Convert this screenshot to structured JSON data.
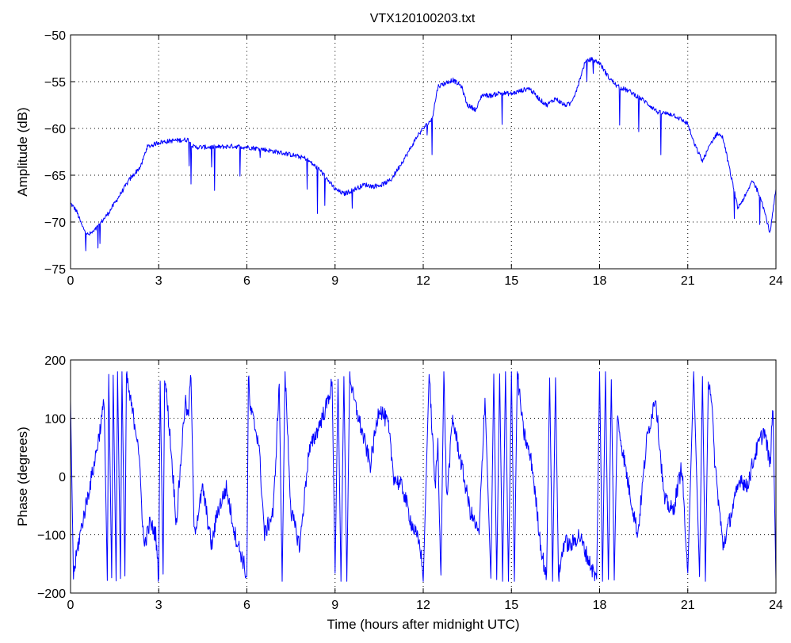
{
  "figure": {
    "title": "VTX120100203.txt"
  },
  "chart_data": [
    {
      "type": "line",
      "title": "VTX120100203.txt",
      "xlabel": "",
      "ylabel": "Amplitude (dB)",
      "xlim": [
        0,
        24
      ],
      "ylim": [
        -75,
        -50
      ],
      "xticks": [
        "0",
        "3",
        "6",
        "9",
        "12",
        "15",
        "18",
        "21",
        "24"
      ],
      "yticks": [
        "−75",
        "−70",
        "−65",
        "−60",
        "−55",
        "−50"
      ],
      "grid": true,
      "line_color": "#0000ff",
      "series": [
        {
          "x": [
            0,
            0.2,
            0.4,
            0.6,
            0.8,
            1.0,
            1.3,
            1.6,
            2.0,
            2.4,
            2.6,
            3.0,
            3.5,
            4.0,
            4.2,
            4.6,
            5.0,
            5.5,
            6.0,
            6.5,
            7.0,
            7.5,
            8.0,
            8.5,
            9.0,
            9.3,
            9.6,
            10.0,
            10.3,
            10.6,
            10.9,
            11.2,
            11.5,
            11.8,
            12.0,
            12.3,
            12.5,
            12.8,
            13.0,
            13.3,
            13.5,
            13.8,
            14.0,
            14.3,
            14.6,
            15.0,
            15.3,
            15.6,
            16.0,
            16.2,
            16.5,
            16.8,
            17.0,
            17.2,
            17.5,
            17.7,
            18.0,
            18.3,
            18.6,
            19.0,
            19.5,
            20.0,
            20.5,
            21.0,
            21.2,
            21.5,
            21.8,
            22.0,
            22.2,
            22.4,
            22.7,
            23.0,
            23.2,
            23.5,
            23.8,
            24.0
          ],
          "y": [
            -68,
            -68.8,
            -70.5,
            -71.4,
            -71,
            -70.2,
            -69,
            -67.5,
            -65.5,
            -64,
            -62,
            -61.5,
            -61.3,
            -61.2,
            -62,
            -62,
            -62,
            -61.9,
            -62,
            -62.2,
            -62.5,
            -62.8,
            -63.2,
            -64.5,
            -66.5,
            -67,
            -66.6,
            -66,
            -66.2,
            -66,
            -65.5,
            -64,
            -62.5,
            -60.8,
            -60,
            -59,
            -55.5,
            -55.1,
            -54.8,
            -55.5,
            -57.5,
            -58,
            -56.4,
            -56.5,
            -56.2,
            -56.3,
            -56,
            -55.7,
            -57,
            -57.5,
            -56.8,
            -57.5,
            -57.4,
            -56,
            -53,
            -52.6,
            -53,
            -54.5,
            -55.5,
            -56,
            -57,
            -58.3,
            -58.5,
            -59.5,
            -61.5,
            -63.5,
            -61.5,
            -60.5,
            -61,
            -64,
            -68.5,
            -67,
            -65.5,
            -67.5,
            -71.2,
            -66.5
          ]
        }
      ]
    },
    {
      "type": "line",
      "title": "",
      "xlabel": "Time (hours after midnight UTC)",
      "ylabel": "Phase (degrees)",
      "xlim": [
        0,
        24
      ],
      "ylim": [
        -200,
        200
      ],
      "xticks": [
        "0",
        "3",
        "6",
        "9",
        "12",
        "15",
        "18",
        "21",
        "24"
      ],
      "yticks": [
        "−200",
        "−100",
        "0",
        "100",
        "200"
      ],
      "grid": true,
      "line_color": "#0000ff",
      "series": [
        {
          "x": [
            0,
            0.1,
            0.25,
            0.4,
            0.6,
            0.8,
            1.0,
            1.15,
            1.25,
            1.3,
            1.4,
            1.45,
            1.55,
            1.6,
            1.7,
            1.75,
            1.85,
            1.9,
            2.0,
            2.3,
            2.5,
            2.7,
            2.9,
            3.0,
            3.05,
            3.15,
            3.2,
            3.4,
            3.6,
            3.8,
            3.9,
            4.0,
            4.1,
            4.2,
            4.5,
            4.8,
            5.0,
            5.3,
            5.6,
            5.9,
            6.0,
            6.05,
            6.1,
            6.2,
            6.4,
            6.6,
            6.9,
            7.1,
            7.2,
            7.3,
            7.5,
            7.8,
            8.1,
            8.4,
            8.7,
            8.9,
            9.0,
            9.1,
            9.2,
            9.3,
            9.4,
            9.5,
            9.6,
            9.8,
            10.0,
            10.2,
            10.5,
            10.8,
            11.0,
            11.3,
            11.6,
            11.9,
            12.0,
            12.2,
            12.4,
            12.5,
            12.6,
            12.7,
            12.8,
            13.0,
            13.3,
            13.6,
            13.9,
            14.1,
            14.3,
            14.4,
            14.5,
            14.6,
            14.7,
            14.8,
            14.9,
            15.0,
            15.1,
            15.2,
            15.4,
            15.7,
            16.0,
            16.2,
            16.3,
            16.4,
            16.5,
            16.6,
            16.7,
            16.8,
            17.0,
            17.3,
            17.6,
            17.9,
            18.0,
            18.1,
            18.2,
            18.3,
            18.4,
            18.5,
            18.6,
            18.8,
            19.0,
            19.3,
            19.6,
            19.9,
            20.0,
            20.2,
            20.5,
            20.8,
            21.0,
            21.2,
            21.4,
            21.5,
            21.6,
            21.7,
            21.8,
            21.9,
            22.0,
            22.2,
            22.5,
            22.8,
            23.0,
            23.3,
            23.6,
            23.8,
            23.9,
            24.0
          ],
          "y": [
            130,
            -170,
            -120,
            -80,
            -30,
            20,
            80,
            130,
            -178,
            178,
            -178,
            178,
            -178,
            178,
            -178,
            178,
            -178,
            178,
            140,
            60,
            -120,
            -80,
            -100,
            -178,
            178,
            -178,
            178,
            60,
            -80,
            60,
            130,
            100,
            178,
            -100,
            -20,
            -120,
            -60,
            -20,
            -100,
            -150,
            -178,
            178,
            120,
            100,
            60,
            -100,
            -60,
            160,
            -178,
            178,
            -60,
            -120,
            40,
            80,
            120,
            160,
            -178,
            178,
            -178,
            178,
            -178,
            178,
            140,
            100,
            60,
            20,
            120,
            90,
            0,
            -20,
            -80,
            -120,
            -178,
            178,
            -20,
            60,
            -178,
            178,
            -40,
            100,
            20,
            -60,
            -100,
            140,
            -178,
            178,
            -178,
            178,
            -178,
            178,
            -178,
            178,
            -178,
            178,
            80,
            20,
            -120,
            -178,
            178,
            -178,
            178,
            -178,
            -140,
            -110,
            -120,
            -100,
            -140,
            -178,
            178,
            -178,
            178,
            -178,
            178,
            -178,
            100,
            40,
            -20,
            -100,
            60,
            140,
            80,
            -40,
            -60,
            20,
            -178,
            178,
            -178,
            178,
            -178,
            170,
            140,
            40,
            -20,
            -120,
            -60,
            0,
            -20,
            40,
            80,
            20,
            120,
            -178
          ]
        }
      ]
    }
  ]
}
